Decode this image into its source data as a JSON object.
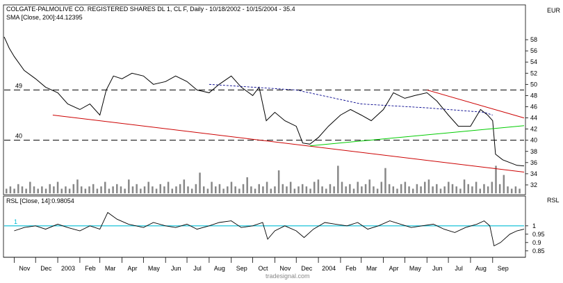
{
  "header": {
    "title": "COLGATE-PALMOLIVE CO. REGISTERED SHARES DL 1, CL F, Daily - 10/18/2002 - 10/15/2004 - 35.4",
    "sma_label": "SMA [Close, 200]:44.12395",
    "currency": "EUR"
  },
  "rsl_panel": {
    "label": "RSL [Close, 14]:0.98054",
    "axis_title": "RSL"
  },
  "footer": {
    "watermark": "tradesignal.com"
  },
  "colors": {
    "price": "#000000",
    "sma": "#00008b",
    "resistance": "#cc0000",
    "support": "#00cc00",
    "rsl": "#000000",
    "rsl_reference": "#00bcd4",
    "volume": "#888888",
    "dashed_level": "#000000"
  },
  "chart_data": [
    {
      "type": "line",
      "title": "COLGATE-PALMOLIVE CO. REGISTERED SHARES DL 1, CL F, Daily - 10/18/2002 - 10/15/2004 - 35.4",
      "y_unit": "EUR",
      "ylim": [
        30.5,
        60.5
      ],
      "y_ticks": [
        32,
        34,
        36,
        38,
        40,
        42,
        44,
        46,
        48,
        50,
        52,
        54,
        56,
        58
      ],
      "x_ticks": [
        "Nov",
        "Dec",
        "2003",
        "Feb",
        "Mar",
        "Apr",
        "May",
        "Jun",
        "Jul",
        "Aug",
        "Sep",
        "Oct",
        "Nov",
        "Dec",
        "2004",
        "Feb",
        "Mar",
        "Apr",
        "May",
        "Jun",
        "Jul",
        "Aug",
        "Sep"
      ],
      "x_tick_dates": [
        "2002-11-01",
        "2002-12-01",
        "2003-01-01",
        "2003-02-01",
        "2003-03-01",
        "2003-04-01",
        "2003-05-01",
        "2003-06-01",
        "2003-07-01",
        "2003-08-01",
        "2003-09-01",
        "2003-10-01",
        "2003-11-01",
        "2003-12-01",
        "2004-01-01",
        "2004-02-01",
        "2004-03-01",
        "2004-04-01",
        "2004-05-01",
        "2004-06-01",
        "2004-07-01",
        "2004-08-01",
        "2004-09-01"
      ],
      "xlim": [
        "2002-10-18",
        "2004-10-15"
      ],
      "series": [
        {
          "name": "COLGATE-PALMOLIVE CO. REGISTERED SHARES DL 1, CL F",
          "points": [
            [
              "2002-10-18",
              58.5
            ],
            [
              "2002-10-25",
              56.5
            ],
            [
              "2002-11-01",
              55.0
            ],
            [
              "2002-11-15",
              52.5
            ],
            [
              "2002-12-01",
              51.0
            ],
            [
              "2002-12-15",
              49.5
            ],
            [
              "2003-01-01",
              48.5
            ],
            [
              "2003-01-15",
              46.5
            ],
            [
              "2003-02-01",
              45.5
            ],
            [
              "2003-02-15",
              46.5
            ],
            [
              "2003-03-01",
              44.5
            ],
            [
              "2003-03-10",
              49.0
            ],
            [
              "2003-03-20",
              51.5
            ],
            [
              "2003-04-01",
              51.0
            ],
            [
              "2003-04-15",
              52.0
            ],
            [
              "2003-05-01",
              51.5
            ],
            [
              "2003-05-15",
              50.0
            ],
            [
              "2003-06-01",
              50.5
            ],
            [
              "2003-06-15",
              51.5
            ],
            [
              "2003-07-01",
              50.5
            ],
            [
              "2003-07-15",
              49.0
            ],
            [
              "2003-08-01",
              48.5
            ],
            [
              "2003-08-15",
              50.0
            ],
            [
              "2003-09-01",
              51.5
            ],
            [
              "2003-09-15",
              49.5
            ],
            [
              "2003-10-01",
              48.0
            ],
            [
              "2003-10-10",
              49.5
            ],
            [
              "2003-10-20",
              43.5
            ],
            [
              "2003-11-01",
              45.0
            ],
            [
              "2003-11-15",
              43.5
            ],
            [
              "2003-12-01",
              42.5
            ],
            [
              "2003-12-10",
              39.5
            ],
            [
              "2003-12-20",
              39.3
            ],
            [
              "2004-01-01",
              40.5
            ],
            [
              "2004-01-15",
              42.5
            ],
            [
              "2004-02-01",
              44.5
            ],
            [
              "2004-02-15",
              45.5
            ],
            [
              "2004-03-01",
              44.5
            ],
            [
              "2004-03-15",
              43.5
            ],
            [
              "2004-04-01",
              45.5
            ],
            [
              "2004-04-15",
              48.5
            ],
            [
              "2004-05-01",
              47.5
            ],
            [
              "2004-05-15",
              48.0
            ],
            [
              "2004-06-01",
              48.5
            ],
            [
              "2004-06-15",
              47.0
            ],
            [
              "2004-07-01",
              44.5
            ],
            [
              "2004-07-15",
              42.5
            ],
            [
              "2004-08-01",
              42.5
            ],
            [
              "2004-08-15",
              45.5
            ],
            [
              "2004-08-25",
              44.5
            ],
            [
              "2004-09-01",
              43.5
            ],
            [
              "2004-09-05",
              37.5
            ],
            [
              "2004-09-15",
              36.5
            ],
            [
              "2004-09-25",
              36.0
            ],
            [
              "2004-10-05",
              35.5
            ],
            [
              "2004-10-15",
              35.4
            ]
          ]
        },
        {
          "name": "SMA [Close, 200]",
          "points": [
            [
              "2003-08-01",
              50.0
            ],
            [
              "2003-12-01",
              49.0
            ],
            [
              "2004-03-01",
              46.5
            ],
            [
              "2004-06-01",
              45.8
            ],
            [
              "2004-08-20",
              45.0
            ],
            [
              "2004-09-01",
              44.5
            ]
          ]
        },
        {
          "name": "",
          "points": [
            [
              "2002-12-25",
              44.5
            ],
            [
              "2004-10-15",
              34.3
            ]
          ]
        },
        {
          "name": "",
          "points": [
            [
              "2004-06-01",
              49.0
            ],
            [
              "2004-10-15",
              44.0
            ]
          ]
        },
        {
          "name": "",
          "points": [
            [
              "2003-12-20",
              39.0
            ],
            [
              "2004-10-15",
              42.6
            ]
          ]
        }
      ],
      "horizontal_levels": [
        {
          "label": "49",
          "value": 49
        },
        {
          "label": "40",
          "value": 40
        }
      ],
      "volume": {
        "values": [
          2,
          3,
          2,
          4,
          3,
          2,
          5,
          3,
          2,
          3,
          2,
          4,
          3,
          5,
          2,
          3,
          2,
          4,
          6,
          3,
          2,
          3,
          4,
          2,
          3,
          5,
          2,
          3,
          4,
          3,
          2,
          6,
          3,
          4,
          2,
          3,
          5,
          3,
          2,
          4,
          3,
          5,
          2,
          3,
          4,
          6,
          3,
          2,
          4,
          9,
          3,
          2,
          5,
          3,
          4,
          2,
          3,
          5,
          3,
          2,
          4,
          7,
          3,
          2,
          4,
          3,
          5,
          2,
          3,
          10,
          4,
          3,
          5,
          2,
          3,
          4,
          3,
          2,
          5,
          6,
          3,
          2,
          4,
          3,
          12,
          5,
          3,
          4,
          2,
          5,
          3,
          4,
          6,
          3,
          2,
          5,
          11,
          4,
          3,
          2,
          4,
          5,
          3,
          2,
          4,
          3,
          5,
          6,
          3,
          4,
          2,
          3,
          5,
          4,
          3,
          2,
          6,
          4,
          3,
          5,
          2,
          4,
          3,
          5,
          12,
          4,
          8,
          3,
          2,
          3,
          2
        ]
      }
    },
    {
      "type": "line",
      "title": "RSL [Close, 14]:0.98054",
      "ylim": [
        0.82,
        1.12
      ],
      "y_ticks": [
        0.85,
        0.9,
        0.95,
        1
      ],
      "xlim": [
        "2002-10-18",
        "2004-10-15"
      ],
      "series": [
        {
          "name": "RSL [Close, 14]",
          "points": [
            [
              "2002-11-01",
              0.97
            ],
            [
              "2002-11-15",
              0.99
            ],
            [
              "2002-12-01",
              1.0
            ],
            [
              "2002-12-15",
              0.98
            ],
            [
              "2003-01-01",
              1.01
            ],
            [
              "2003-01-15",
              0.99
            ],
            [
              "2003-02-01",
              0.97
            ],
            [
              "2003-02-15",
              1.0
            ],
            [
              "2003-03-01",
              0.98
            ],
            [
              "2003-03-12",
              1.08
            ],
            [
              "2003-03-25",
              1.04
            ],
            [
              "2003-04-10",
              1.01
            ],
            [
              "2003-05-01",
              0.99
            ],
            [
              "2003-05-15",
              1.02
            ],
            [
              "2003-06-01",
              1.0
            ],
            [
              "2003-06-15",
              0.99
            ],
            [
              "2003-07-01",
              1.01
            ],
            [
              "2003-07-15",
              0.98
            ],
            [
              "2003-08-01",
              1.0
            ],
            [
              "2003-08-15",
              1.02
            ],
            [
              "2003-09-01",
              1.03
            ],
            [
              "2003-09-15",
              0.99
            ],
            [
              "2003-10-01",
              1.0
            ],
            [
              "2003-10-15",
              1.02
            ],
            [
              "2003-10-22",
              0.92
            ],
            [
              "2003-11-01",
              0.97
            ],
            [
              "2003-11-15",
              1.0
            ],
            [
              "2003-12-01",
              0.97
            ],
            [
              "2003-12-12",
              0.93
            ],
            [
              "2003-12-25",
              0.98
            ],
            [
              "2004-01-10",
              1.02
            ],
            [
              "2004-01-25",
              1.01
            ],
            [
              "2004-02-10",
              1.0
            ],
            [
              "2004-02-25",
              1.02
            ],
            [
              "2004-03-10",
              0.98
            ],
            [
              "2004-03-25",
              1.0
            ],
            [
              "2004-04-10",
              1.03
            ],
            [
              "2004-04-25",
              1.01
            ],
            [
              "2004-05-10",
              0.99
            ],
            [
              "2004-05-25",
              1.0
            ],
            [
              "2004-06-10",
              1.01
            ],
            [
              "2004-06-25",
              0.98
            ],
            [
              "2004-07-10",
              0.96
            ],
            [
              "2004-07-25",
              0.99
            ],
            [
              "2004-08-10",
              1.01
            ],
            [
              "2004-08-20",
              1.03
            ],
            [
              "2004-08-28",
              1.0
            ],
            [
              "2004-09-03",
              0.88
            ],
            [
              "2004-09-12",
              0.9
            ],
            [
              "2004-09-25",
              0.95
            ],
            [
              "2004-10-05",
              0.97
            ],
            [
              "2004-10-15",
              0.98
            ]
          ]
        }
      ],
      "reference_line": {
        "label": "1",
        "value": 1.0
      }
    }
  ]
}
